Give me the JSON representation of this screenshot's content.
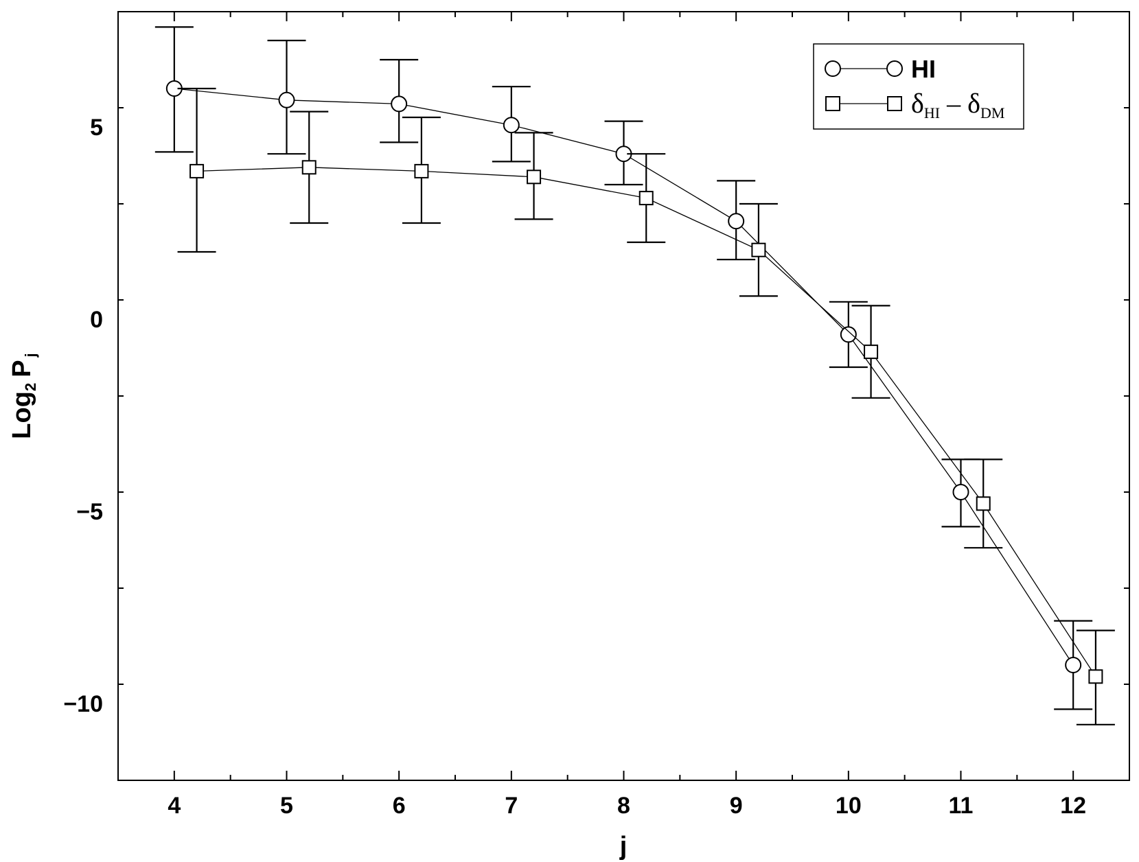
{
  "chart_data": {
    "type": "line",
    "title": "",
    "xlabel": "j",
    "ylabel": {
      "main": "Log",
      "base": "2",
      "symbol": "P",
      "subscript": "j"
    },
    "xlim": [
      3.5,
      12.5
    ],
    "ylim": [
      -12,
      8
    ],
    "x_ticks": [
      4,
      5,
      6,
      7,
      8,
      9,
      10,
      11,
      12
    ],
    "x_tick_labels": [
      "4",
      "5",
      "6",
      "7",
      "8",
      "9",
      "10",
      "11",
      "12"
    ],
    "y_ticks": [
      -10,
      -5,
      0,
      5
    ],
    "y_tick_labels": [
      "−10",
      "−5",
      "0",
      "5"
    ],
    "grid": false,
    "legend_position": "top-right",
    "series": [
      {
        "name": "HI",
        "marker": "circle",
        "x": [
          4,
          5,
          6,
          7,
          8,
          9,
          10,
          11,
          12
        ],
        "y": [
          6.0,
          5.7,
          5.6,
          5.05,
          4.3,
          2.55,
          -0.4,
          -4.5,
          -9.0
        ],
        "err_low": [
          4.35,
          4.3,
          4.6,
          4.1,
          3.5,
          1.55,
          -1.25,
          -5.4,
          -10.15
        ],
        "err_high": [
          7.6,
          7.25,
          6.75,
          6.05,
          5.15,
          3.6,
          0.45,
          -3.65,
          -7.85
        ]
      },
      {
        "name_parts": [
          "δ",
          "HI",
          "–",
          "δ",
          "DM"
        ],
        "marker": "square",
        "x": [
          4.2,
          5.2,
          6.2,
          7.2,
          8.2,
          9.2,
          10.2,
          11.2,
          12.2
        ],
        "y": [
          3.85,
          3.95,
          3.85,
          3.7,
          3.15,
          1.8,
          -0.85,
          -4.8,
          -9.3
        ],
        "err_low": [
          1.75,
          2.5,
          2.5,
          2.6,
          2.0,
          0.6,
          -2.05,
          -5.95,
          -10.55
        ],
        "err_high": [
          6.0,
          5.4,
          5.25,
          4.85,
          4.3,
          3.0,
          0.35,
          -3.65,
          -8.1
        ]
      }
    ]
  }
}
